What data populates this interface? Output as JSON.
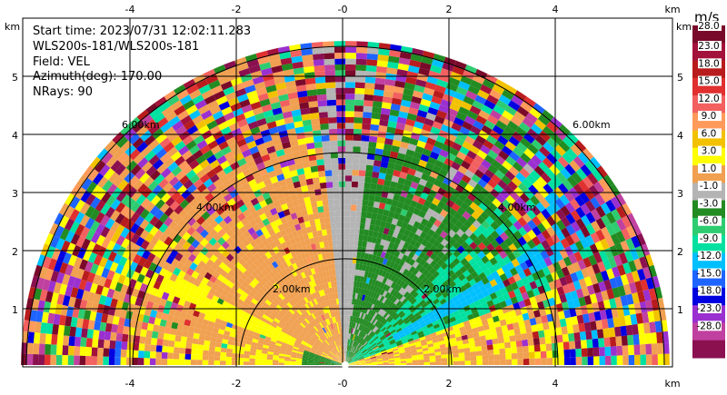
{
  "info": {
    "start_time": "Start time: 2023/07/31 12:02:11.283",
    "instrument": "WLS200s-181/WLS200s-181",
    "field": "Field: VEL",
    "azimuth": "Azimuth(deg): 170.00",
    "nrays": "NRays: 90"
  },
  "axes": {
    "unit_label": "km",
    "x_ticks": [
      "-4",
      "-2",
      "-0",
      "2",
      "4"
    ],
    "y_ticks": [
      "1",
      "2",
      "3",
      "4",
      "5"
    ]
  },
  "rings": [
    "2.00km",
    "2.00km",
    "4.00km",
    "4.00km",
    "6.00km",
    "6.00km"
  ],
  "colorbar": {
    "unit": "m/s",
    "ticks": [
      "28.0",
      "23.0",
      "18.0",
      "15.0",
      "12.0",
      "9.0",
      "6.0",
      "3.0",
      "1.0",
      "-1.0",
      "-3.0",
      "-6.0",
      "-9.0",
      "-12.0",
      "-15.0",
      "-18.0",
      "-23.0",
      "-28.0"
    ],
    "colors": [
      "#7a0a2a",
      "#a3123a",
      "#b81c1c",
      "#e03030",
      "#f26060",
      "#ff9a5a",
      "#f2c200",
      "#ffff00",
      "#f0a050",
      "#b4b4b4",
      "#228b22",
      "#2ecc71",
      "#00e0a0",
      "#00bfff",
      "#1e64ff",
      "#0000e0",
      "#9b30d0",
      "#c040a0",
      "#8a1050"
    ]
  },
  "chart_data": {
    "type": "heatmap",
    "title": "",
    "field": "VEL",
    "units": "m/s",
    "x_unit": "km",
    "y_unit": "km",
    "xlim": [
      -6.0,
      6.0
    ],
    "ylim": [
      0,
      6.0
    ],
    "range_rings_km": [
      2,
      4,
      6
    ],
    "colorbar_levels": [
      28.0,
      23.0,
      18.0,
      15.0,
      12.0,
      9.0,
      6.0,
      3.0,
      1.0,
      -1.0,
      -3.0,
      -6.0,
      -9.0,
      -12.0,
      -15.0,
      -18.0,
      -23.0,
      -28.0
    ],
    "nrays": 90,
    "azimuth_deg": 170.0
  }
}
